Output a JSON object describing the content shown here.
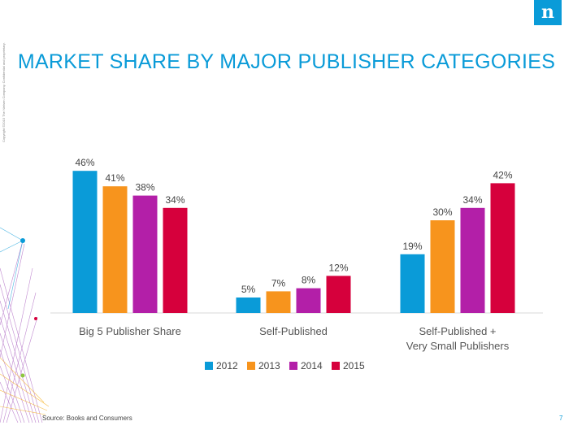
{
  "slide": {
    "title": "MARKET SHARE BY MAJOR PUBLISHER CATEGORIES",
    "logo_letter": "n",
    "copyright": "Copyright ©2015 The Nielsen Company. Confidential and proprietary.",
    "source": "Source: Books and Consumers",
    "page_number": "7"
  },
  "colors": {
    "title": "#0a9bd8",
    "logo_bg": "#0a9bd8"
  },
  "chart_data": {
    "type": "bar",
    "title": "MARKET SHARE BY MAJOR PUBLISHER CATEGORIES",
    "categories": [
      [
        "Big 5 Publisher Share"
      ],
      [
        "Self-Published"
      ],
      [
        "Self-Published +",
        "Very Small Publishers"
      ]
    ],
    "series": [
      {
        "name": "2012",
        "color": "#0a9bd8",
        "values": [
          46,
          5,
          19
        ]
      },
      {
        "name": "2013",
        "color": "#f7941d",
        "values": [
          41,
          7,
          30
        ]
      },
      {
        "name": "2014",
        "color": "#b31fa8",
        "values": [
          38,
          8,
          34
        ]
      },
      {
        "name": "2015",
        "color": "#d6003c",
        "values": [
          34,
          12,
          42
        ]
      }
    ],
    "value_suffix": "%",
    "ylim": [
      0,
      50
    ],
    "grid": false,
    "legend_position": "bottom"
  }
}
